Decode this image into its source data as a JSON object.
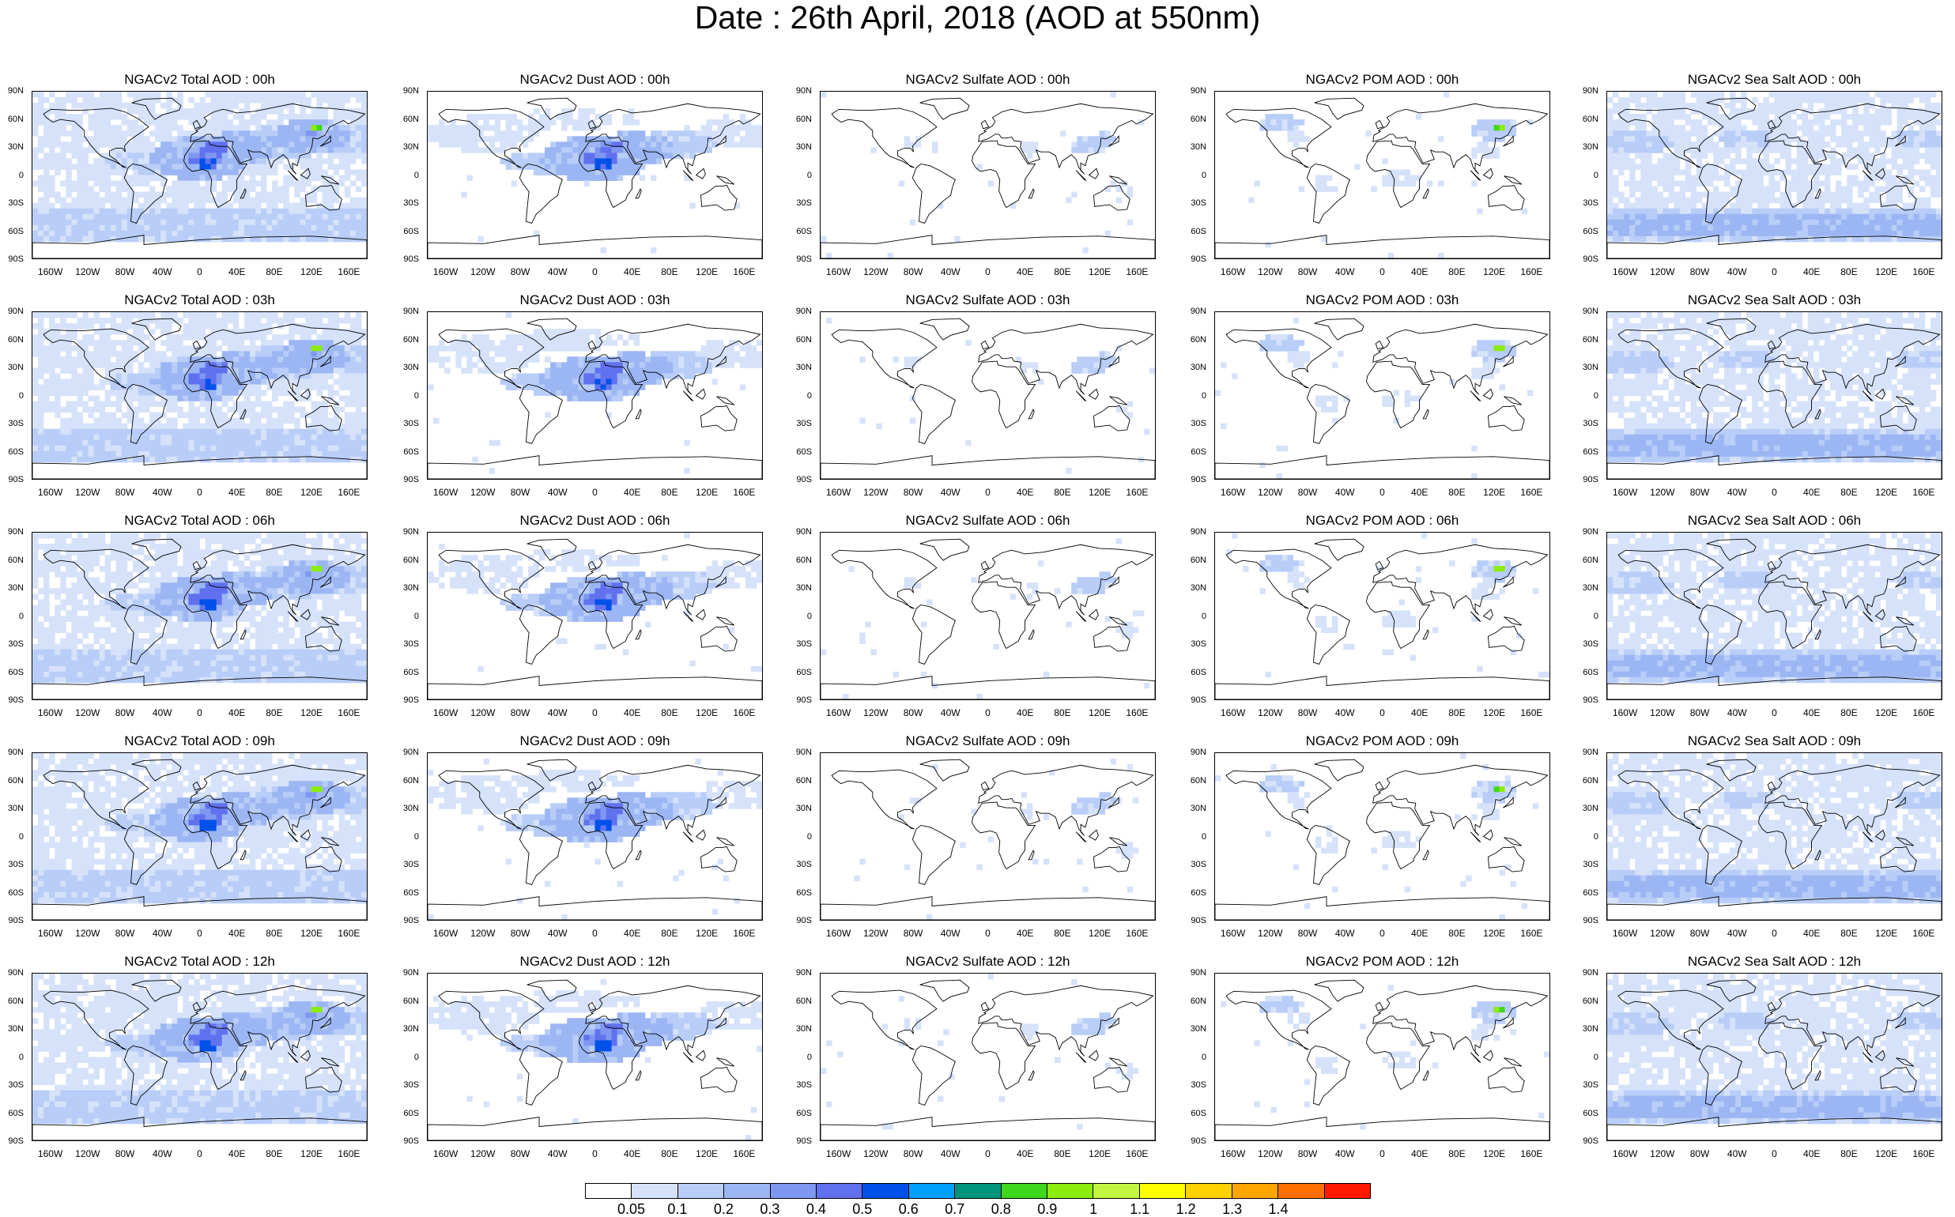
{
  "title": "Date : 26th April, 2018 (AOD at 550nm)",
  "y_axis_labels": [
    "90N",
    "60N",
    "30N",
    "0",
    "30S",
    "60S",
    "90S"
  ],
  "x_axis_labels": [
    "160W",
    "120W",
    "80W",
    "40W",
    "0",
    "40E",
    "80E",
    "120E",
    "160E"
  ],
  "icons": {
    "land_outline": "coastline-icon",
    "boundary": "country-border-icon"
  },
  "panels": [
    [
      {
        "title": "NGACv2 Total AOD : 00h",
        "field": "total",
        "time": "00h"
      },
      {
        "title": "NGACv2 Dust AOD : 00h",
        "field": "dust",
        "time": "00h"
      },
      {
        "title": "NGACv2 Sulfate AOD : 00h",
        "field": "sulfate",
        "time": "00h"
      },
      {
        "title": "NGACv2 POM AOD : 00h",
        "field": "pom",
        "time": "00h"
      },
      {
        "title": "NGACv2 Sea Salt AOD : 00h",
        "field": "seasalt",
        "time": "00h"
      }
    ],
    [
      {
        "title": "NGACv2 Total AOD : 03h",
        "field": "total",
        "time": "03h"
      },
      {
        "title": "NGACv2 Dust AOD : 03h",
        "field": "dust",
        "time": "03h"
      },
      {
        "title": "NGACv2 Sulfate AOD : 03h",
        "field": "sulfate",
        "time": "03h"
      },
      {
        "title": "NGACv2 POM AOD : 03h",
        "field": "pom",
        "time": "03h"
      },
      {
        "title": "NGACv2 Sea Salt AOD : 03h",
        "field": "seasalt",
        "time": "03h"
      }
    ],
    [
      {
        "title": "NGACv2 Total AOD : 06h",
        "field": "total",
        "time": "06h"
      },
      {
        "title": "NGACv2 Dust AOD : 06h",
        "field": "dust",
        "time": "06h"
      },
      {
        "title": "NGACv2 Sulfate AOD : 06h",
        "field": "sulfate",
        "time": "06h"
      },
      {
        "title": "NGACv2 POM AOD : 06h",
        "field": "pom",
        "time": "06h"
      },
      {
        "title": "NGACv2 Sea Salt AOD : 06h",
        "field": "seasalt",
        "time": "06h"
      }
    ],
    [
      {
        "title": "NGACv2 Total AOD : 09h",
        "field": "total",
        "time": "09h"
      },
      {
        "title": "NGACv2 Dust AOD : 09h",
        "field": "dust",
        "time": "09h"
      },
      {
        "title": "NGACv2 Sulfate AOD : 09h",
        "field": "sulfate",
        "time": "09h"
      },
      {
        "title": "NGACv2 POM AOD : 09h",
        "field": "pom",
        "time": "09h"
      },
      {
        "title": "NGACv2 Sea Salt  AOD : 09h",
        "field": "seasalt",
        "time": "09h"
      }
    ],
    [
      {
        "title": "NGACv2 Total AOD  : 12h",
        "field": "total",
        "time": "12h"
      },
      {
        "title": "NGACv2 Dust AOD : 12h",
        "field": "dust",
        "time": "12h"
      },
      {
        "title": "NGACv2 Sulfate AOD : 12h",
        "field": "sulfate",
        "time": "12h"
      },
      {
        "title": "NGACv2 POM  AOD : 12h",
        "field": "pom",
        "time": "12h"
      },
      {
        "title": "NGACv2 Sea Salt  AOD : 12h",
        "field": "seasalt",
        "time": "12h"
      }
    ]
  ],
  "colorbar": {
    "colors": [
      "#ffffff",
      "#d6e2fa",
      "#b8cdf7",
      "#9cb6f4",
      "#7f97f0",
      "#6171ee",
      "#0051ea",
      "#00a0ff",
      "#00947c",
      "#3fd71e",
      "#8bec0d",
      "#c2f53e",
      "#ffff00",
      "#ffd100",
      "#ffa500",
      "#ff7000",
      "#ff1a00"
    ],
    "labels": [
      "0.05",
      "0.1",
      "0.2",
      "0.3",
      "0.4",
      "0.5",
      "0.6",
      "0.7",
      "0.8",
      "0.9",
      "1",
      "1.1",
      "1.2",
      "1.3",
      "1.4"
    ]
  }
}
